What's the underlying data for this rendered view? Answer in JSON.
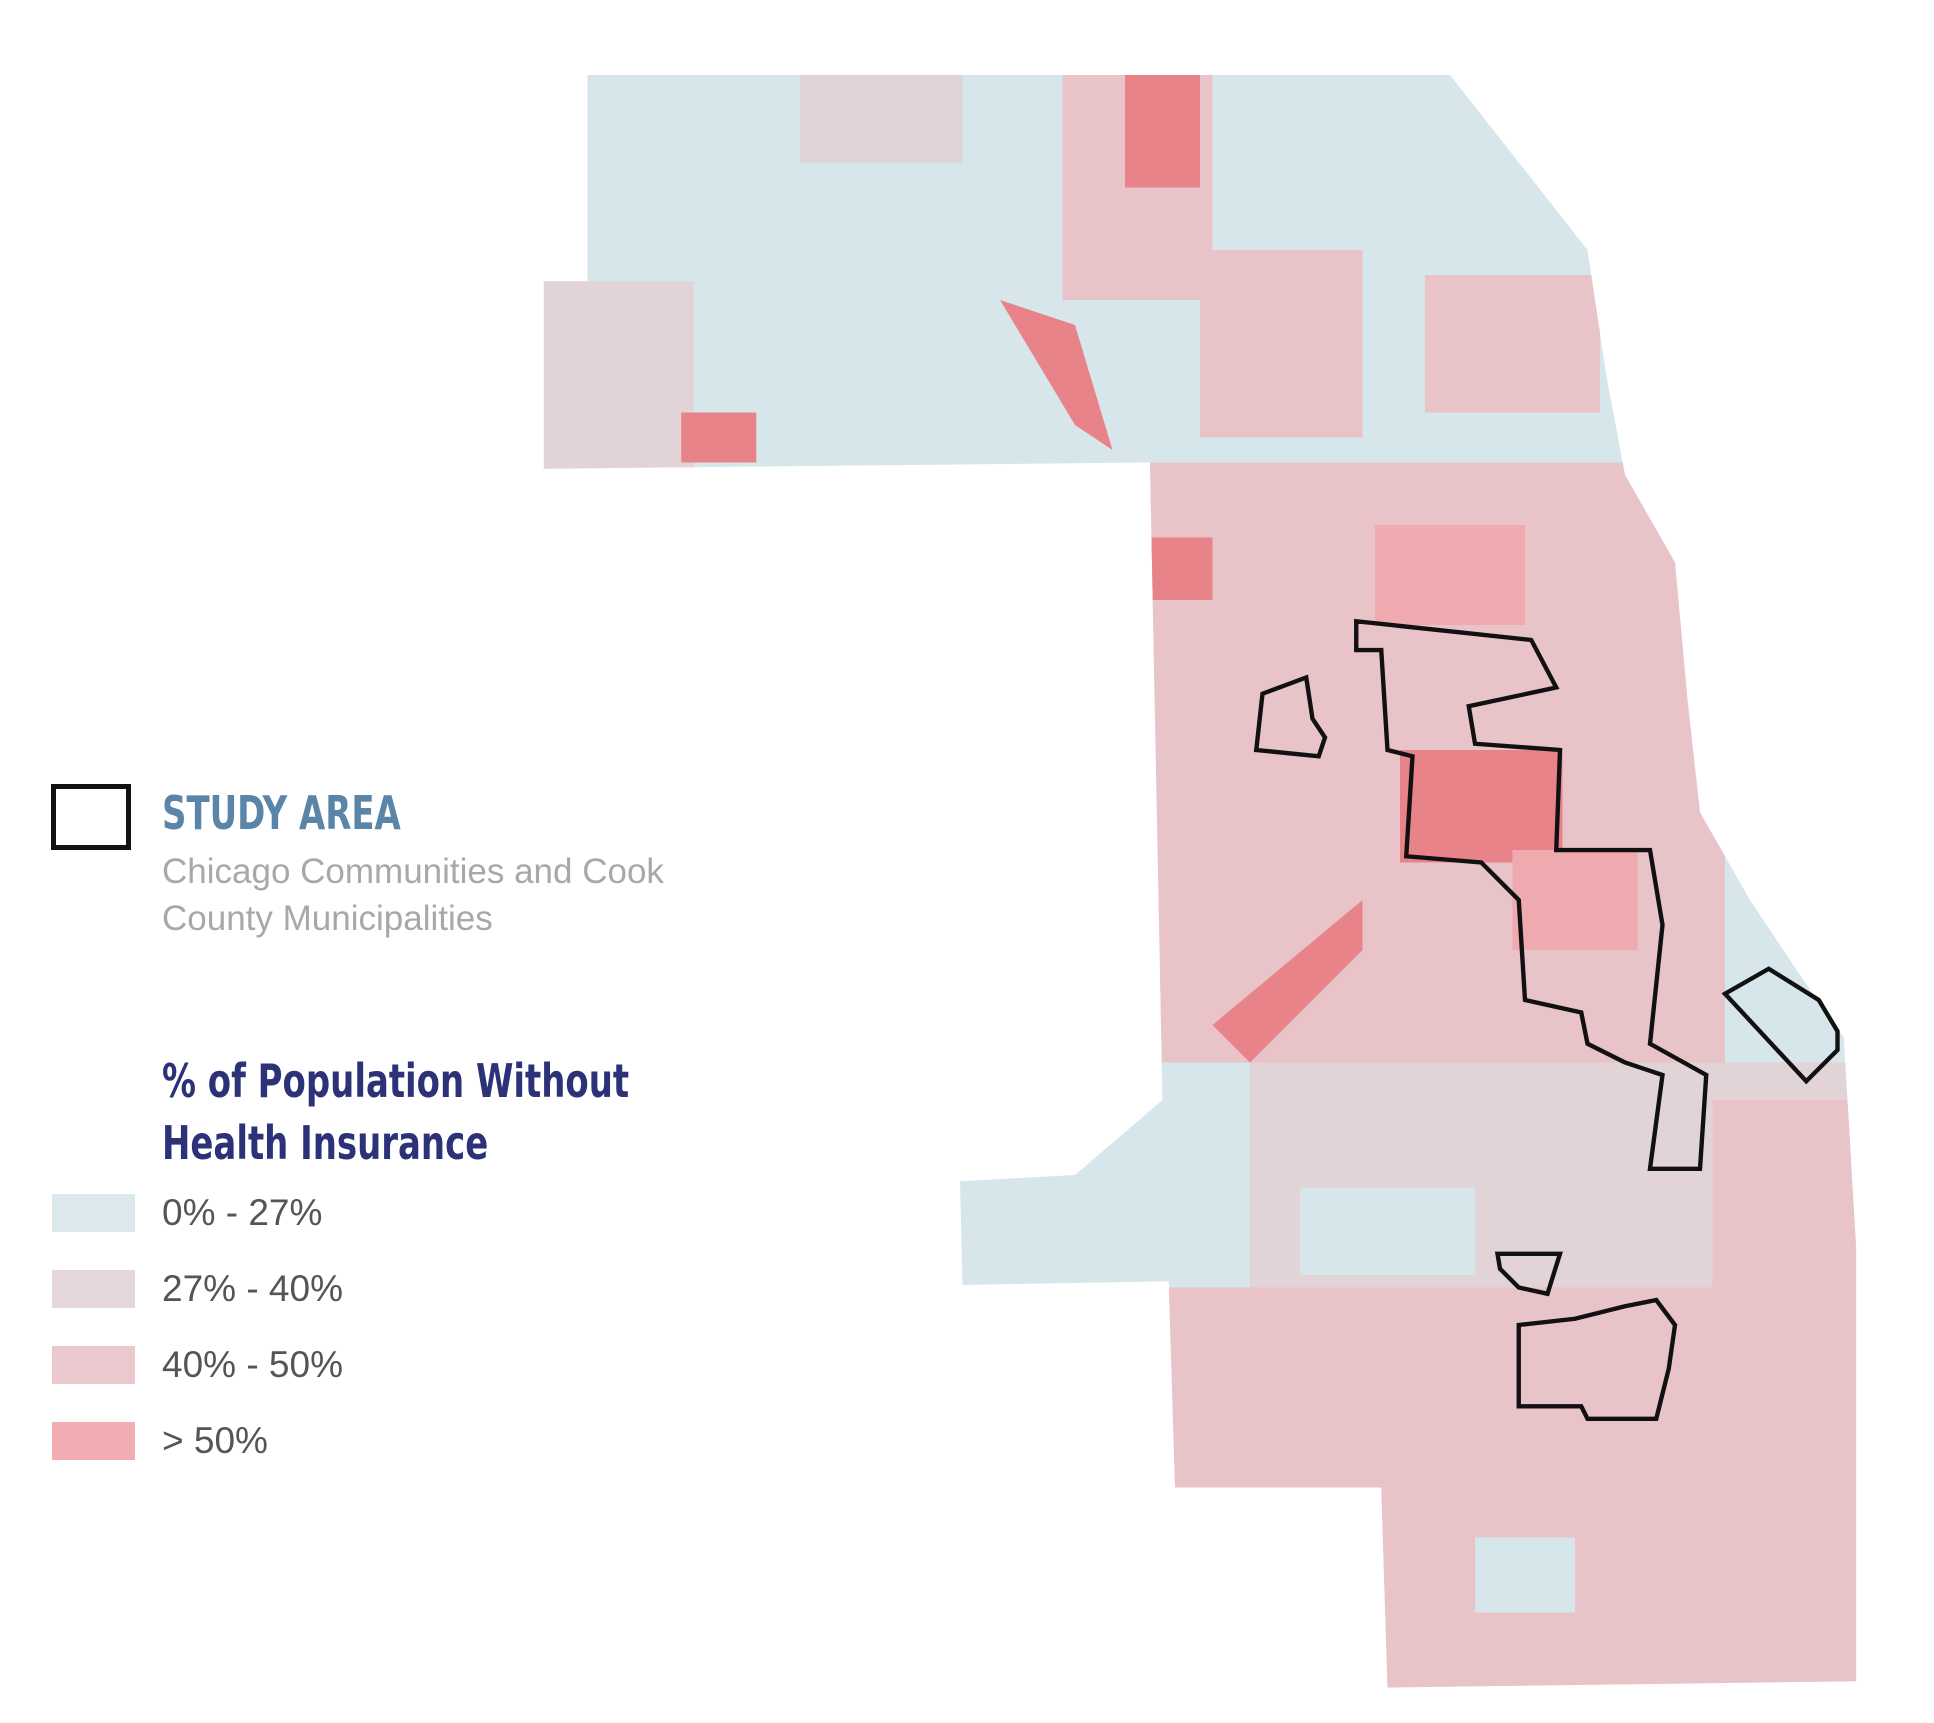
{
  "header": {
    "study_area": "STUDY AREA",
    "study_area_note": "Chicago Communities and Cook County Municipalities"
  },
  "legend": {
    "title": "% of Population Without Health Insurance",
    "items": [
      {
        "label": "0% - 27%",
        "color": "#dce9ec"
      },
      {
        "label": "27% - 40%",
        "color": "#e4d6da"
      },
      {
        "label": "40% - 50%",
        "color": "#ebc8cd"
      },
      {
        "label": "> 50%",
        "color": "#f0aeb3"
      }
    ]
  }
}
